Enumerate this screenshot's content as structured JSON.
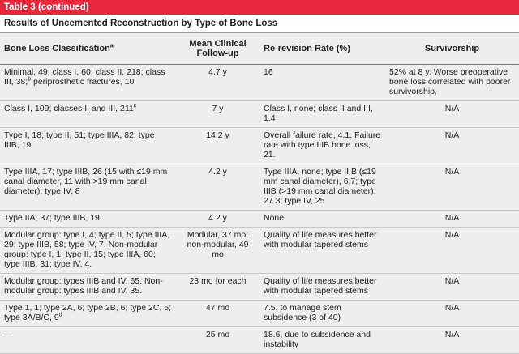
{
  "header": {
    "label": "Table 3 (continued)",
    "title": "Results of Uncemented Reconstruction by Type of Bone Loss"
  },
  "table": {
    "columns": [
      [
        {
          "text": "Bone Loss Classification"
        },
        {
          "sup": "a"
        }
      ],
      "Mean Clinical Follow-up",
      "Re-revision Rate (%)",
      "Survivorship"
    ],
    "rows": [
      [
        [
          {
            "text": "Minimal, 49; class I, 60; class II, 218; class III, 38;"
          },
          {
            "sup": "b"
          },
          {
            "text": " periprosthetic fractures, 10"
          }
        ],
        "4.7 y",
        "16",
        "52% at 8 y. Worse preoperative bone loss correlated with poorer survivorship."
      ],
      [
        [
          {
            "text": "Class I, 109; classes II and III, 211"
          },
          {
            "sup": "c"
          }
        ],
        "7 y",
        "Class I, none; class II and III, 1.4",
        "N/A"
      ],
      [
        "Type I, 18; type II, 51; type IIIA, 82; type IIIB, 19",
        "14.2 y",
        "Overall failure rate, 4.1. Failure rate with type IIIB bone loss, 21.",
        "N/A"
      ],
      [
        "Type IIIA, 17; type IIIB, 26 (15 with ≤19 mm canal diameter, 11 with >19 mm canal diameter); type IV, 8",
        "4.2 y",
        "Type IIIA, none; type IIIB (≤19 mm canal diameter), 6.7; type IIIB (>19 mm canal diameter), 27.3; type IV, 25",
        "N/A"
      ],
      [
        "Type IIA, 37; type IIIB, 19",
        "4.2 y",
        "None",
        "N/A"
      ],
      [
        "Modular group: type I, 4; type II, 5; type IIIA, 29; type IIIB, 58; type IV, 7. Non-modular group: type I, 1; type II, 15; type IIIA, 60; type IIIB, 31; type IV, 4.",
        "Modular, 37 mo; non-modular, 49 mo",
        "Quality of life measures better with modular tapered stems",
        "N/A"
      ],
      [
        "Modular group: types IIIB and IV, 65. Non-modular group: types IIIB and IV, 35.",
        "23 mo for each",
        "Quality of life measures better with modular tapered stems",
        "N/A"
      ],
      [
        [
          {
            "text": "Type 1, 1; type 2A, 6; type 2B, 6; type 2C, 5; type 3A/B/C, 9"
          },
          {
            "sup": "d"
          }
        ],
        "47 mo",
        "7.5, to manage stem subsidence (3 of 40)",
        "N/A"
      ],
      [
        "—",
        "25 mo",
        "18.6, due to subsidence and instability",
        "N/A"
      ]
    ]
  }
}
